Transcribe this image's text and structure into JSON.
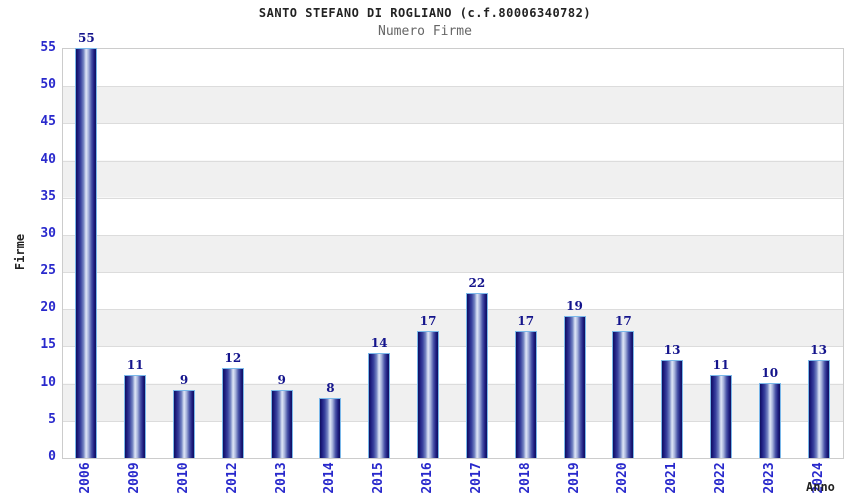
{
  "header": {
    "title": "SANTO STEFANO DI ROGLIANO (c.f.80006340782)",
    "subtitle": "Numero Firme"
  },
  "chart_data": {
    "type": "bar",
    "title": "SANTO STEFANO DI ROGLIANO (c.f.80006340782)",
    "subtitle": "Numero Firme",
    "xlabel": "Anno",
    "ylabel": "Firme",
    "categories": [
      "2006",
      "2009",
      "2010",
      "2012",
      "2013",
      "2014",
      "2015",
      "2016",
      "2017",
      "2018",
      "2019",
      "2020",
      "2021",
      "2022",
      "2023",
      "2024"
    ],
    "values": [
      55,
      11,
      9,
      12,
      9,
      8,
      14,
      17,
      22,
      17,
      19,
      17,
      13,
      11,
      10,
      13
    ],
    "ylim": [
      0,
      55
    ],
    "yticks": [
      0,
      5,
      10,
      15,
      20,
      25,
      30,
      35,
      40,
      45,
      50,
      55
    ],
    "grid": true,
    "legend": false,
    "colors": {
      "bar_dark": "#10105e",
      "bar_light": "#dde4f6",
      "bar_border": "#7ab8ea",
      "value_label": "#14148c",
      "tick_label": "#2929cc",
      "grid_line": "#dcdcdc",
      "band_alt": "#f0f0f0",
      "plot_border": "#cccccc",
      "title": "#222222",
      "subtitle": "#666666",
      "axis_title": "#222222",
      "background": "#ffffff"
    }
  }
}
